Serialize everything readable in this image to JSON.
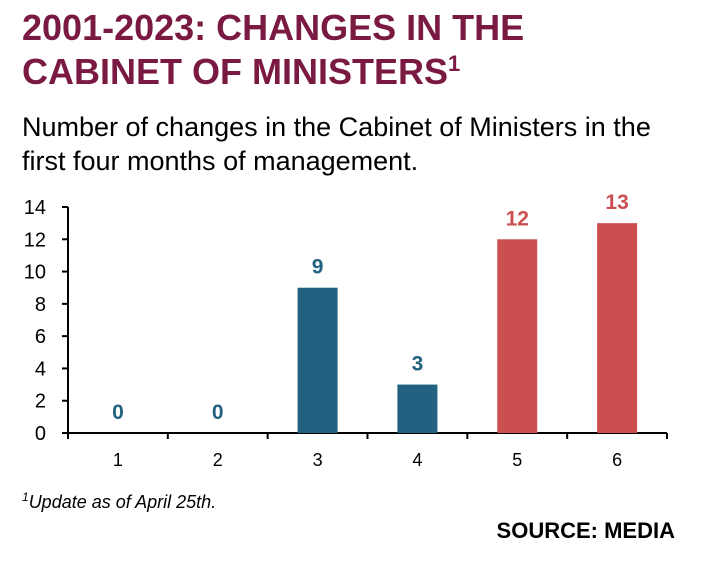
{
  "header": {
    "title": "2001-2023: CHANGES IN THE CABINET OF MINISTERS",
    "title_superscript": "1",
    "subtitle": "Number of changes in the Cabinet of Ministers in the first four months of management."
  },
  "footer": {
    "footnote_marker": "1",
    "footnote": "Update as of April 25th.",
    "source": "SOURCE: MEDIA"
  },
  "chart_data": {
    "type": "bar",
    "title": "2001-2023: CHANGES IN THE CABINET OF MINISTERS",
    "subtitle": "Number of changes in the Cabinet of Ministers in the first four months of management.",
    "xlabel": "",
    "ylabel": "",
    "categories": [
      "1",
      "2",
      "3",
      "4",
      "5",
      "6"
    ],
    "values": [
      0,
      0,
      9,
      3,
      12,
      13
    ],
    "ylim": [
      0,
      14
    ],
    "yticks": [
      0,
      2,
      4,
      6,
      8,
      10,
      12,
      14
    ],
    "grid": false,
    "legend": "none",
    "data_labels": true,
    "colors": [
      "#22617f",
      "#22617f",
      "#22617f",
      "#22617f",
      "#cc4f4f",
      "#cc4f4f"
    ]
  }
}
